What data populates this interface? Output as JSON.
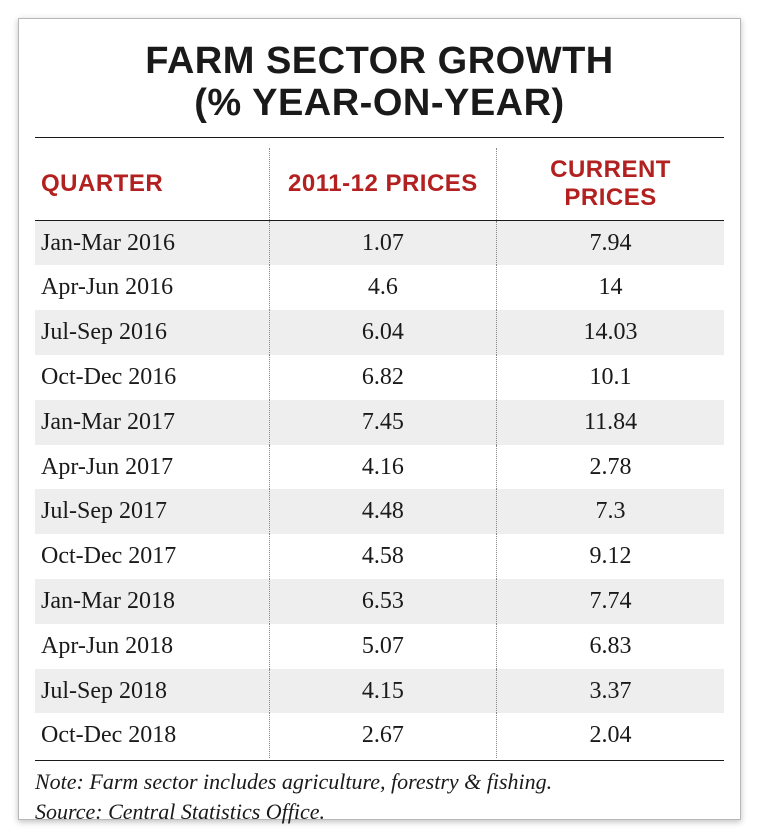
{
  "title_line1": "FARM SECTOR GROWTH",
  "title_line2": "(% YEAR-ON-YEAR)",
  "table": {
    "type": "table",
    "columns": [
      "QUARTER",
      "2011-12 PRICES",
      "CURRENT PRICES"
    ],
    "rows": [
      [
        "Jan-Mar 2016",
        "1.07",
        "7.94"
      ],
      [
        "Apr-Jun 2016",
        "4.6",
        "14"
      ],
      [
        "Jul-Sep 2016",
        "6.04",
        "14.03"
      ],
      [
        "Oct-Dec 2016",
        "6.82",
        "10.1"
      ],
      [
        "Jan-Mar 2017",
        "7.45",
        "11.84"
      ],
      [
        "Apr-Jun 2017",
        "4.16",
        "2.78"
      ],
      [
        "Jul-Sep 2017",
        "4.48",
        "7.3"
      ],
      [
        "Oct-Dec 2017",
        "4.58",
        "9.12"
      ],
      [
        "Jan-Mar 2018",
        "6.53",
        "7.74"
      ],
      [
        "Apr-Jun 2018",
        "5.07",
        "6.83"
      ],
      [
        "Jul-Sep 2018",
        "4.15",
        "3.37"
      ],
      [
        "Oct-Dec 2018",
        "2.67",
        "2.04"
      ]
    ],
    "header_color": "#b32020",
    "header_fontsize": 24,
    "cell_fontsize": 24,
    "text_color": "#1a1a1a",
    "stripe_color": "#eeeeee",
    "background_color": "#ffffff",
    "border_color": "#1a1a1a",
    "dotted_separator_color": "#888888",
    "column_widths_pct": [
      34,
      33,
      33
    ],
    "column_align": [
      "left",
      "center",
      "center"
    ]
  },
  "note_line1": "Note: Farm sector includes agriculture, forestry & fishing.",
  "note_line2": "Source: Central Statistics Office.",
  "title_fontsize": 38,
  "note_fontsize": 22
}
